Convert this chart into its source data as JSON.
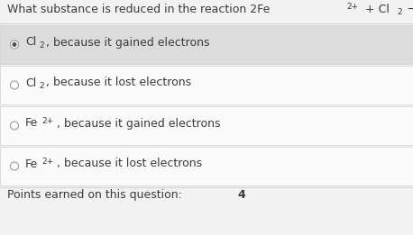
{
  "options": [
    {
      "label_main": "Cl",
      "label_sub": "2",
      "label_end": ", because it gained electrons",
      "selected": true
    },
    {
      "label_main": "Cl",
      "label_sub": "2",
      "label_end": ", because it lost electrons",
      "selected": false
    },
    {
      "label_main": "Fe",
      "label_sup": "2+",
      "label_end": ", because it gained electrons",
      "selected": false
    },
    {
      "label_main": "Fe",
      "label_sup": "2+",
      "label_end": ", because it lost electrons",
      "selected": false
    }
  ],
  "footer": "Points earned on this question: ",
  "footer_bold": "4",
  "bg_color": "#f2f2f2",
  "selected_bg": "#dcdcdc",
  "option_bg": "#fafafa",
  "text_color": "#3a3a3a",
  "border_color": "#c8c8c8",
  "radio_edge": "#999999",
  "radio_dot": "#555555"
}
